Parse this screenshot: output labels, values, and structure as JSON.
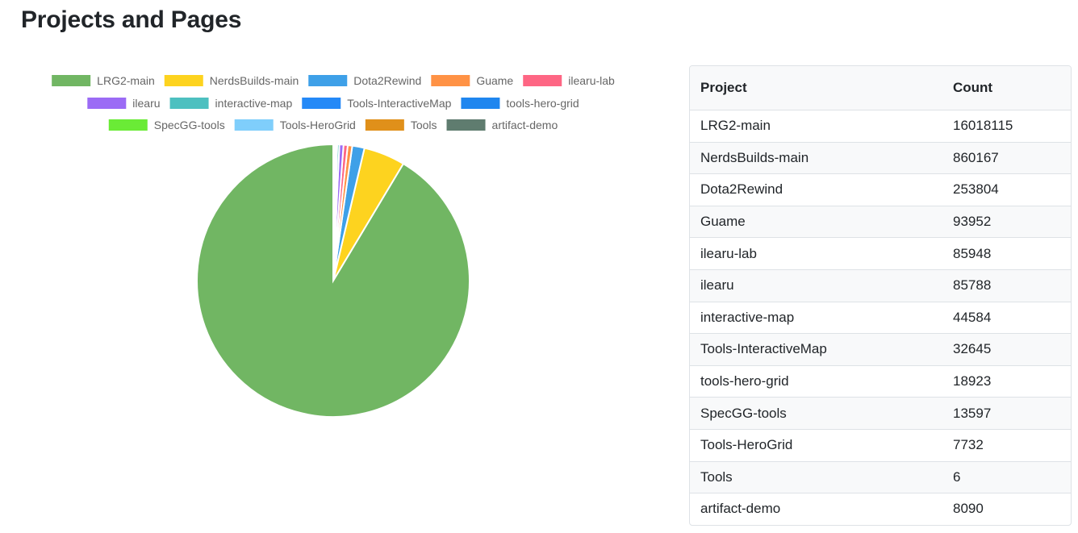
{
  "page": {
    "title": "Projects and Pages"
  },
  "table": {
    "headers": [
      "Project",
      "Count"
    ],
    "rows": [
      [
        "LRG2-main",
        "16018115"
      ],
      [
        "NerdsBuilds-main",
        "860167"
      ],
      [
        "Dota2Rewind",
        "253804"
      ],
      [
        "Guame",
        "93952"
      ],
      [
        "ilearu-lab",
        "85948"
      ],
      [
        "ilearu",
        "85788"
      ],
      [
        "interactive-map",
        "44584"
      ],
      [
        "Tools-InteractiveMap",
        "32645"
      ],
      [
        "tools-hero-grid",
        "18923"
      ],
      [
        "SpecGG-tools",
        "13597"
      ],
      [
        "Tools-HeroGrid",
        "7732"
      ],
      [
        "Tools",
        "6"
      ],
      [
        "artifact-demo",
        "8090"
      ]
    ]
  },
  "chart_data": {
    "type": "pie",
    "title": "",
    "legend_position": "top",
    "categories": [
      "LRG2-main",
      "NerdsBuilds-main",
      "Dota2Rewind",
      "Guame",
      "ilearu-lab",
      "ilearu",
      "interactive-map",
      "Tools-InteractiveMap",
      "tools-hero-grid",
      "SpecGG-tools",
      "Tools-HeroGrid",
      "Tools",
      "artifact-demo"
    ],
    "values": [
      16018115,
      860167,
      253804,
      93952,
      85948,
      85788,
      44584,
      32645,
      18923,
      13597,
      7732,
      6,
      8090
    ],
    "colors": [
      "#71b663",
      "#fdd31f",
      "#3ea0e8",
      "#ff9245",
      "#fe6684",
      "#9b6bf5",
      "#4dc0c0",
      "#2489f7",
      "#1f86ef",
      "#6aeb36",
      "#7fcefb",
      "#e0901a",
      "#5f7c6f"
    ]
  }
}
